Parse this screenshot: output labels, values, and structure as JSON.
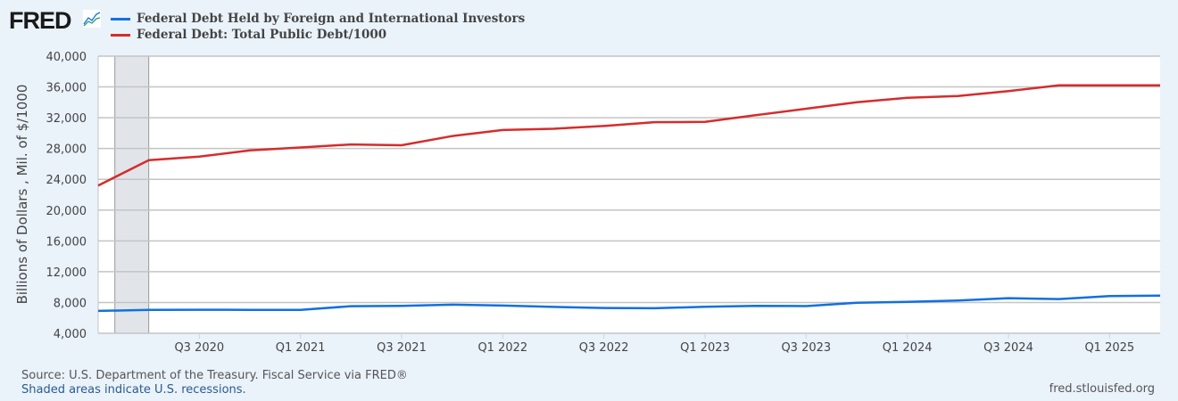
{
  "header": {
    "logo_text": "FRED"
  },
  "chart_data": {
    "type": "line",
    "title": "",
    "ylabel": "Billions of Dollars , Mil. of $/1000",
    "xlabel": "",
    "ylim": [
      4000,
      40000
    ],
    "yticks": [
      4000,
      8000,
      12000,
      16000,
      20000,
      24000,
      28000,
      32000,
      36000,
      40000
    ],
    "ytick_labels": [
      "4,000",
      "8,000",
      "12,000",
      "16,000",
      "20,000",
      "24,000",
      "28,000",
      "32,000",
      "36,000",
      "40,000"
    ],
    "x": [
      "2020Q1",
      "2020Q2",
      "2020Q3",
      "2020Q4",
      "2021Q1",
      "2021Q2",
      "2021Q3",
      "2021Q4",
      "2022Q1",
      "2022Q2",
      "2022Q3",
      "2022Q4",
      "2023Q1",
      "2023Q2",
      "2023Q3",
      "2023Q4",
      "2024Q1",
      "2024Q2",
      "2024Q3",
      "2024Q4",
      "2025Q1",
      "2025Q2"
    ],
    "xticks": [
      {
        "at": 2,
        "label": "Q3 2020"
      },
      {
        "at": 4,
        "label": "Q1 2021"
      },
      {
        "at": 6,
        "label": "Q3 2021"
      },
      {
        "at": 8,
        "label": "Q1 2022"
      },
      {
        "at": 10,
        "label": "Q3 2022"
      },
      {
        "at": 12,
        "label": "Q1 2023"
      },
      {
        "at": 14,
        "label": "Q3 2023"
      },
      {
        "at": 16,
        "label": "Q1 2024"
      },
      {
        "at": 18,
        "label": "Q3 2024"
      },
      {
        "at": 20,
        "label": "Q1 2025"
      }
    ],
    "recession": {
      "start": 0.33,
      "end": 1.0
    },
    "grid": true,
    "legend_position": "top-left",
    "series": [
      {
        "name": "Federal Debt Held by Foreign and International Investors",
        "color": "#1170e0",
        "values": [
          6900,
          7030,
          7060,
          7050,
          7030,
          7520,
          7570,
          7720,
          7600,
          7430,
          7290,
          7250,
          7440,
          7560,
          7530,
          7970,
          8080,
          8250,
          8560,
          8450,
          8830,
          8900
        ]
      },
      {
        "name": "Federal Debt: Total Public Debt/1000",
        "color": "#d62c2c",
        "values": [
          23190,
          26480,
          26950,
          27750,
          28130,
          28530,
          28430,
          29620,
          30400,
          30570,
          30930,
          31420,
          31460,
          32330,
          33170,
          34000,
          34590,
          34830,
          35460,
          36220,
          36215,
          36215
        ]
      }
    ]
  },
  "footer": {
    "source": "Source: U.S. Department of the Treasury. Fiscal Service via FRED®",
    "recession_note": "Shaded areas indicate U.S. recessions.",
    "url": "fred.stlouisfed.org"
  }
}
